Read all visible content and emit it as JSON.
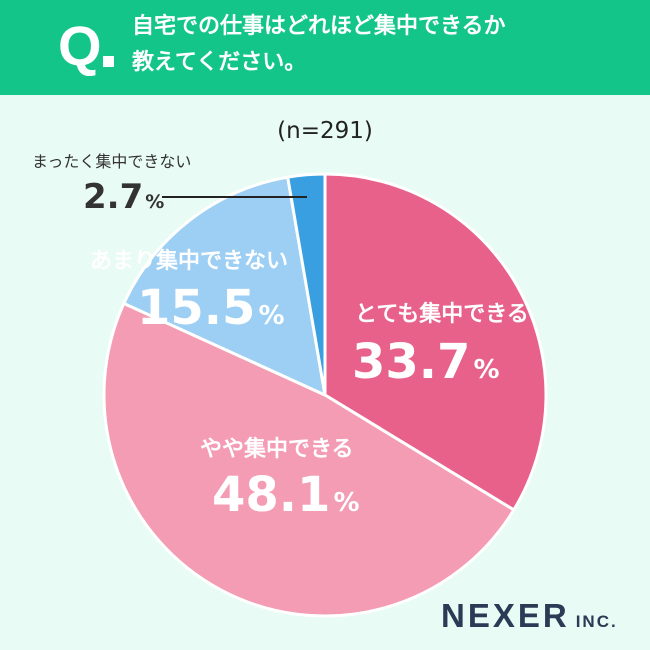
{
  "question": {
    "mark": "Q",
    "line1": "自宅での仕事はどれほど集中できるか",
    "line2": "教えてください。"
  },
  "sample_size": "(n=291)",
  "chart_data": {
    "type": "pie",
    "start_angle_deg": 0,
    "direction": "clockwise",
    "slices": [
      {
        "label": "とても集中できる",
        "value": 33.7,
        "display": "33.7",
        "color": "#e8618a"
      },
      {
        "label": "やや集中できる",
        "value": 48.1,
        "display": "48.1",
        "color": "#f39cb4"
      },
      {
        "label": "あまり集中できない",
        "value": 15.5,
        "display": "15.5",
        "color": "#9ccff3"
      },
      {
        "label": "まったく集中できない",
        "value": 2.7,
        "display": "2.7",
        "color": "#3a9fe0"
      }
    ],
    "percent_sign": "%",
    "border_color": "#ffffff"
  },
  "brand": {
    "name": "NEXER",
    "suffix": "INC."
  }
}
